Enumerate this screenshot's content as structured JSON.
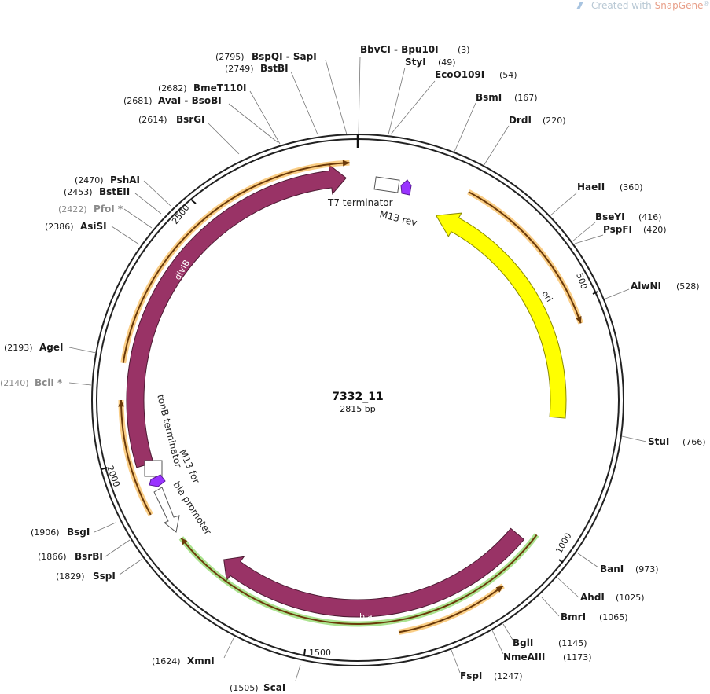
{
  "watermark": {
    "prefix": "Created with ",
    "brand": "SnapGene",
    "mark": "®"
  },
  "plasmid": {
    "name": "7332_11",
    "length_label": "2815 bp",
    "length": 2815
  },
  "tick_labels": [
    "500",
    "1000",
    "1500",
    "2000",
    "2500"
  ],
  "sites": [
    {
      "name": "BbvCI  -  Bpu10I",
      "pos": "(3)",
      "bp": 3
    },
    {
      "name": "StyI",
      "pos": "(49)",
      "bp": 49
    },
    {
      "name": "EcoO109I",
      "pos": "(54)",
      "bp": 54
    },
    {
      "name": "BsmI",
      "pos": "(167)",
      "bp": 167
    },
    {
      "name": "DrdI",
      "pos": "(220)",
      "bp": 220
    },
    {
      "name": "HaeII",
      "pos": "(360)",
      "bp": 360
    },
    {
      "name": "BseYI",
      "pos": "(416)",
      "bp": 416
    },
    {
      "name": "PspFI",
      "pos": "(420)",
      "bp": 420
    },
    {
      "name": "AlwNI",
      "pos": "(528)",
      "bp": 528
    },
    {
      "name": "StuI",
      "pos": "(766)",
      "bp": 766
    },
    {
      "name": "BanI",
      "pos": "(973)",
      "bp": 973
    },
    {
      "name": "AhdI",
      "pos": "(1025)",
      "bp": 1025
    },
    {
      "name": "BmrI",
      "pos": "(1065)",
      "bp": 1065
    },
    {
      "name": "BglI",
      "pos": "(1145)",
      "bp": 1145
    },
    {
      "name": "NmeAIII",
      "pos": "(1173)",
      "bp": 1173
    },
    {
      "name": "FspI",
      "pos": "(1247)",
      "bp": 1247
    },
    {
      "name": "ScaI",
      "pos": "(1505)",
      "bp": 1505
    },
    {
      "name": "XmnI",
      "pos": "(1624)",
      "bp": 1624
    },
    {
      "name": "SspI",
      "pos": "(1829)",
      "bp": 1829
    },
    {
      "name": "BsrBI",
      "pos": "(1866)",
      "bp": 1866
    },
    {
      "name": "BsgI",
      "pos": "(1906)",
      "bp": 1906
    },
    {
      "name": "BclI *",
      "pos": "(2140)",
      "bp": 2140,
      "gray": true
    },
    {
      "name": "AgeI",
      "pos": "(2193)",
      "bp": 2193
    },
    {
      "name": "AsiSI",
      "pos": "(2386)",
      "bp": 2386
    },
    {
      "name": "PfoI *",
      "pos": "(2422)",
      "bp": 2422,
      "gray": true
    },
    {
      "name": "BstEII",
      "pos": "(2453)",
      "bp": 2453
    },
    {
      "name": "PshAI",
      "pos": "(2470)",
      "bp": 2470
    },
    {
      "name": "BsrGI",
      "pos": "(2614)",
      "bp": 2614
    },
    {
      "name": "AvaI  -  BsoBI",
      "pos": "(2681)",
      "bp": 2681
    },
    {
      "name": "BmeT110I",
      "pos": "(2682)",
      "bp": 2682
    },
    {
      "name": "BstBI",
      "pos": "(2749)",
      "bp": 2749
    },
    {
      "name": "BspQI  -  SapI",
      "pos": "(2795)",
      "bp": 2795
    }
  ],
  "features": {
    "ori": "ori",
    "bla": "bla",
    "divIB": "divIB",
    "t7": "T7 terminator",
    "m13rev": "M13 rev",
    "tonb": "tonB terminator",
    "m13for": "M13 for",
    "blaprom": "bla promoter"
  },
  "colors": {
    "ori": "#ffff00",
    "cds": "#993366",
    "primer": "#9933ff",
    "orange": "#f5a623",
    "green": "#66cc33"
  }
}
